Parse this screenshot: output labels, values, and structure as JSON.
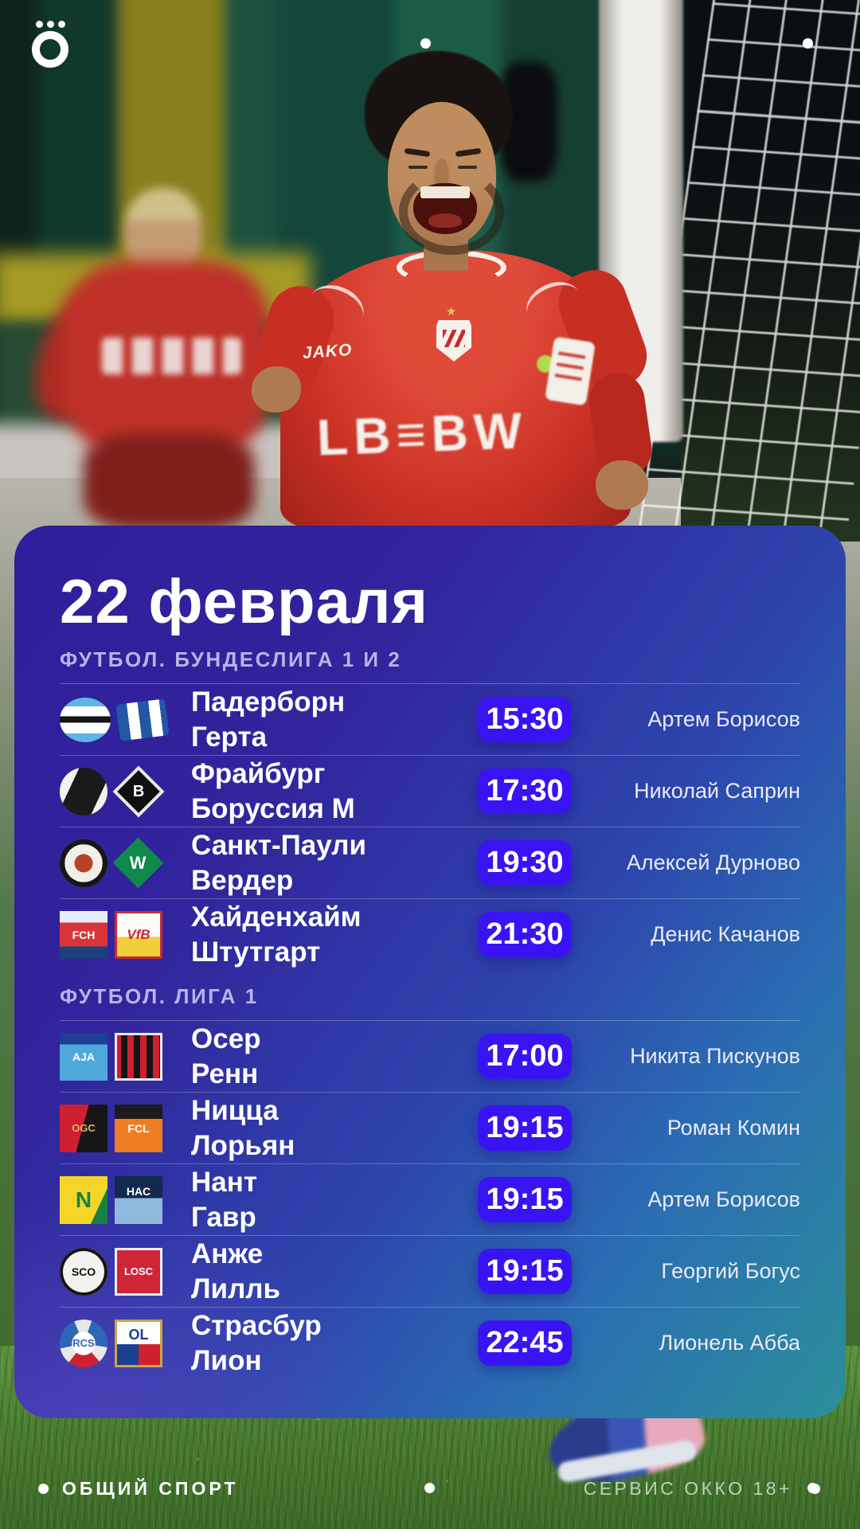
{
  "brand": {
    "logo_icon": "okko-o-logo"
  },
  "photo": {
    "jersey_brand": "JAKO",
    "jersey_sponsor": "LB≡BW",
    "crest_star": "★"
  },
  "card": {
    "date_title": "22 февраля",
    "sections": [
      {
        "label": "ФУТБОЛ. БУНДЕСЛИГА 1 И 2",
        "matches": [
          {
            "home": {
              "name": "Падерборн",
              "logo": {
                "id": "paderborn",
                "icon": "sc-paderborn-crest-icon",
                "text": ""
              }
            },
            "away": {
              "name": "Герта",
              "logo": {
                "id": "hertha",
                "icon": "hertha-bsc-flag-crest-icon",
                "text": ""
              }
            },
            "time": "15:30",
            "commentator": "Артем Борисов"
          },
          {
            "home": {
              "name": "Фрайбург",
              "logo": {
                "id": "freiburg",
                "icon": "sc-freiburg-crest-icon",
                "text": ""
              }
            },
            "away": {
              "name": "Боруссия М",
              "logo": {
                "id": "gladbach",
                "icon": "borussia-moenchengladbach-crest-icon",
                "text": "B"
              }
            },
            "time": "17:30",
            "commentator": "Николай Саприн"
          },
          {
            "home": {
              "name": "Санкт-Паули",
              "logo": {
                "id": "stpauli",
                "icon": "fc-st-pauli-crest-icon",
                "text": ""
              }
            },
            "away": {
              "name": "Вердер",
              "logo": {
                "id": "werder",
                "icon": "werder-bremen-crest-icon",
                "text": "W"
              }
            },
            "time": "19:30",
            "commentator": "Алексей Дурново"
          },
          {
            "home": {
              "name": "Хайденхайм",
              "logo": {
                "id": "heidenheim",
                "icon": "fc-heidenheim-crest-icon",
                "text": "FCH"
              }
            },
            "away": {
              "name": "Штутгарт",
              "logo": {
                "id": "stuttgart",
                "icon": "vfb-stuttgart-crest-icon",
                "text": "VfB"
              }
            },
            "time": "21:30",
            "commentator": "Денис Качанов"
          }
        ]
      },
      {
        "label": "ФУТБОЛ. ЛИГА 1",
        "matches": [
          {
            "home": {
              "name": "Осер",
              "logo": {
                "id": "auxerre",
                "icon": "aj-auxerre-crest-icon",
                "text": "AJA"
              }
            },
            "away": {
              "name": "Ренн",
              "logo": {
                "id": "rennes",
                "icon": "stade-rennais-crest-icon",
                "text": ""
              }
            },
            "time": "17:00",
            "commentator": "Никита Пискунов"
          },
          {
            "home": {
              "name": "Ницца",
              "logo": {
                "id": "nice",
                "icon": "ogc-nice-crest-icon",
                "text": "OGC"
              }
            },
            "away": {
              "name": "Лорьян",
              "logo": {
                "id": "lorient",
                "icon": "fc-lorient-crest-icon",
                "text": "FCL"
              }
            },
            "time": "19:15",
            "commentator": "Роман Комин"
          },
          {
            "home": {
              "name": "Нант",
              "logo": {
                "id": "nantes",
                "icon": "fc-nantes-crest-icon",
                "text": "N"
              }
            },
            "away": {
              "name": "Гавр",
              "logo": {
                "id": "lehavre",
                "icon": "le-havre-ac-crest-icon",
                "text": "HAC"
              }
            },
            "time": "19:15",
            "commentator": "Артем Борисов"
          },
          {
            "home": {
              "name": "Анже",
              "logo": {
                "id": "angers",
                "icon": "angers-sco-crest-icon",
                "text": "SCO"
              }
            },
            "away": {
              "name": "Лилль",
              "logo": {
                "id": "lille",
                "icon": "losc-lille-crest-icon",
                "text": "LOSC"
              }
            },
            "time": "19:15",
            "commentator": "Георгий Богус"
          },
          {
            "home": {
              "name": "Страсбур",
              "logo": {
                "id": "strasbourg",
                "icon": "rc-strasbourg-crest-icon",
                "text": "RCS"
              }
            },
            "away": {
              "name": "Лион",
              "logo": {
                "id": "lyon",
                "icon": "olympique-lyonnais-crest-icon",
                "text": "OL"
              }
            },
            "time": "22:45",
            "commentator": "Лионель Абба"
          }
        ]
      }
    ]
  },
  "footer": {
    "left_label": "ОБЩИЙ СПОРТ",
    "right_label": "СЕРВИС ОККО 18+"
  },
  "colors": {
    "time_badge": "#3a13f5",
    "card_gradient_start": "#2f1e9b",
    "card_gradient_mid": "#2c46ad",
    "card_gradient_end": "#2b8f9a",
    "section_label": "#b9b3e7",
    "grass": "#4a7d30"
  }
}
